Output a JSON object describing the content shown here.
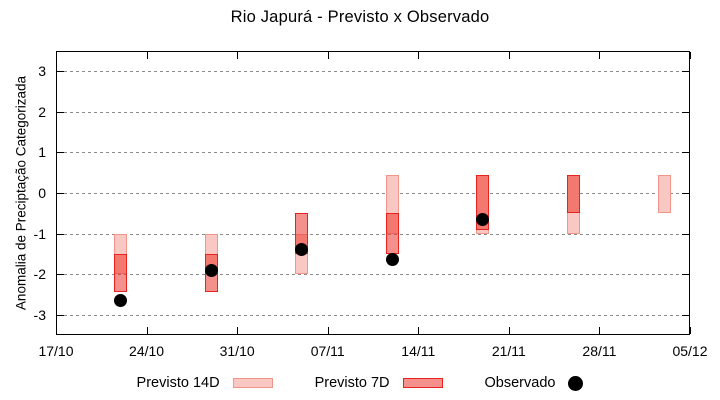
{
  "title": "Rio Japurá - Previsto x Observado",
  "ylabel": "Anomalia de Preciptação Categorizada",
  "legend": {
    "position": "bottom",
    "items": [
      {
        "label": "Previsto 14D",
        "marker": "light-red-box"
      },
      {
        "label": "Previsto 7D",
        "marker": "red-box"
      },
      {
        "label": "Observado",
        "marker": "black-filled-circle"
      }
    ]
  },
  "colors": {
    "previsto14_fill": "#fac8c2",
    "previsto14_border": "#f0958a",
    "previsto7_fill": "rgba(235,55,45,0.55)",
    "previsto7_border": "#e8221e",
    "observado": "#000000",
    "grid": "#8c8c8c",
    "frame": "#000000",
    "text": "#000000"
  },
  "chart_data": {
    "type": "bar",
    "subtype": "overlapping-range-bars-with-scatter",
    "title": "Rio Japurá - Previsto x Observado",
    "xlabel": "",
    "ylabel": "Anomalia de Preciptação Categorizada",
    "ylim": [
      -3.5,
      3.5
    ],
    "y_ticks": [
      3,
      2,
      1,
      0,
      -1,
      -2,
      -3
    ],
    "grid": "horizontal dashed gray",
    "x_range_days": [
      0,
      49
    ],
    "x_ticks": [
      {
        "day": 0,
        "label": "17/10"
      },
      {
        "day": 7,
        "label": "24/10"
      },
      {
        "day": 14,
        "label": "31/10"
      },
      {
        "day": 21,
        "label": "07/11"
      },
      {
        "day": 28,
        "label": "14/11"
      },
      {
        "day": 35,
        "label": "21/11"
      },
      {
        "day": 42,
        "label": "28/11"
      },
      {
        "day": 49,
        "label": "05/12"
      }
    ],
    "series": [
      {
        "name": "Previsto 14D",
        "type": "range_bar",
        "points": [
          {
            "day": 5,
            "date": "22/10",
            "hi": -1.0,
            "lo": -2.0
          },
          {
            "day": 12,
            "date": "29/10",
            "hi": -1.0,
            "lo": -2.0
          },
          {
            "day": 19,
            "date": "05/11",
            "hi": -1.0,
            "lo": -2.0
          },
          {
            "day": 26,
            "date": "12/11",
            "hi": 0.45,
            "lo": -1.0
          },
          {
            "day": 33,
            "date": "19/11",
            "hi": 0.45,
            "lo": -1.0
          },
          {
            "day": 40,
            "date": "26/11",
            "hi": 0.45,
            "lo": -1.0
          },
          {
            "day": 47,
            "date": "03/12",
            "hi": 0.45,
            "lo": -0.5
          }
        ]
      },
      {
        "name": "Previsto 7D",
        "type": "range_bar",
        "points": [
          {
            "day": 5,
            "date": "22/10",
            "hi": -1.5,
            "lo": -2.45
          },
          {
            "day": 12,
            "date": "29/10",
            "hi": -1.5,
            "lo": -2.45
          },
          {
            "day": 19,
            "date": "05/11",
            "hi": -0.5,
            "lo": -1.5
          },
          {
            "day": 26,
            "date": "12/11",
            "hi": -0.5,
            "lo": -1.5
          },
          {
            "day": 33,
            "date": "19/11",
            "hi": 0.45,
            "lo": -0.9
          },
          {
            "day": 40,
            "date": "26/11",
            "hi": 0.45,
            "lo": -0.5
          }
        ]
      },
      {
        "name": "Observado",
        "type": "scatter",
        "points": [
          {
            "day": 5,
            "date": "22/10",
            "y": -2.65
          },
          {
            "day": 12,
            "date": "29/10",
            "y": -1.9
          },
          {
            "day": 19,
            "date": "05/11",
            "y": -1.4
          },
          {
            "day": 26,
            "date": "12/11",
            "y": -1.65
          },
          {
            "day": 33,
            "date": "19/11",
            "y": -0.65
          }
        ]
      }
    ],
    "legend_position": "bottom-center"
  }
}
